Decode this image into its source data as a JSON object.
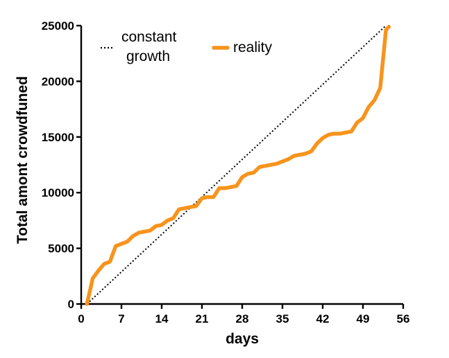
{
  "chart_data": {
    "type": "line",
    "xlabel": "days",
    "ylabel": "Total amont crowdfuned",
    "xlim": [
      0,
      56
    ],
    "ylim": [
      0,
      25000
    ],
    "xticks": [
      "0",
      "7",
      "14",
      "21",
      "28",
      "35",
      "42",
      "49",
      "56"
    ],
    "yticks": [
      "0",
      "5000",
      "10000",
      "15000",
      "20000",
      "25000"
    ],
    "grid": false,
    "legend": {
      "placement": "top-left",
      "entries": [
        {
          "label_lines": [
            "constant",
            "growth"
          ],
          "series": "constant growth"
        },
        {
          "label_lines": [
            "reality"
          ],
          "series": "reality"
        }
      ]
    },
    "series": [
      {
        "name": "constant growth",
        "style": "dotted",
        "color": "#000000",
        "x": [
          1,
          53
        ],
        "y": [
          0,
          25000
        ]
      },
      {
        "name": "reality",
        "style": "solid",
        "color": "#f7941d",
        "x": [
          1,
          2,
          3,
          4,
          5,
          6,
          7,
          8,
          9,
          10,
          11,
          12,
          13,
          14,
          15,
          16,
          17,
          18,
          19,
          20,
          21,
          22,
          23,
          24,
          25,
          26,
          27,
          28,
          29,
          30,
          31,
          32,
          33,
          34,
          35,
          36,
          37,
          38,
          39,
          40,
          41,
          42,
          43,
          44,
          45,
          46,
          47,
          48,
          49,
          50,
          51,
          52,
          53,
          53.5
        ],
        "y": [
          0,
          2300,
          3000,
          3600,
          3800,
          5200,
          5400,
          5600,
          6100,
          6400,
          6500,
          6600,
          7000,
          7100,
          7500,
          7700,
          8500,
          8600,
          8700,
          8800,
          9500,
          9600,
          9600,
          10400,
          10400,
          10500,
          10600,
          11400,
          11700,
          11800,
          12300,
          12400,
          12500,
          12600,
          12800,
          13000,
          13300,
          13400,
          13500,
          13700,
          14400,
          14900,
          15200,
          15300,
          15300,
          15400,
          15500,
          16300,
          16700,
          17700,
          18300,
          19400,
          24600,
          24900
        ]
      }
    ]
  }
}
